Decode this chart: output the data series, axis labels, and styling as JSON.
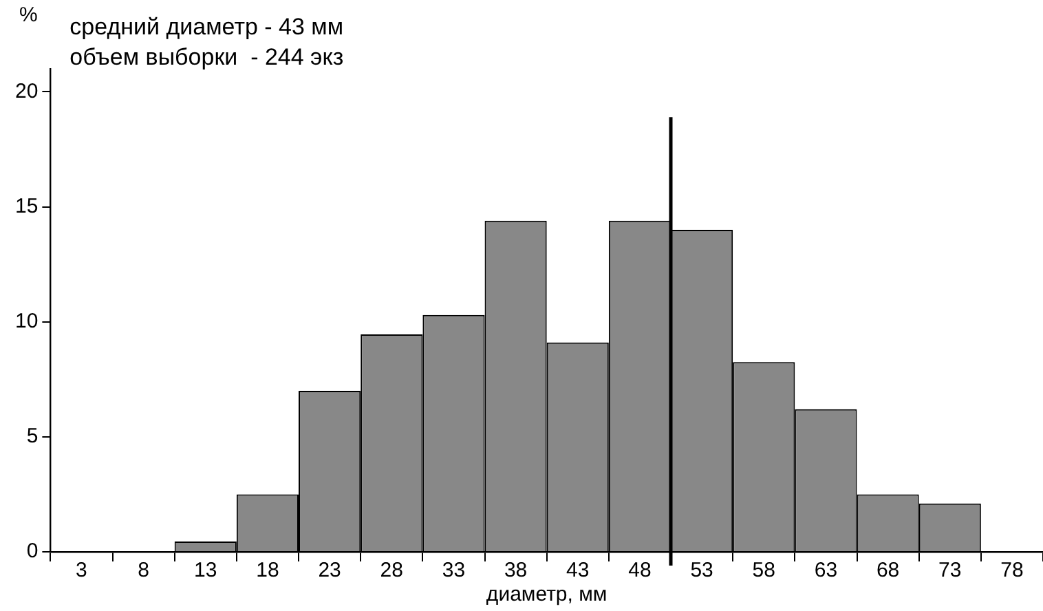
{
  "chart_data": {
    "type": "histogram",
    "xlabel": "диаметр, мм",
    "ylabel": "%",
    "annotations": [
      "средний диаметр - 43 мм",
      "объем выборки  - 244 экз"
    ],
    "bins": [
      0.5,
      5.5,
      10.5,
      15.5,
      20.5,
      25.5,
      30.5,
      35.5,
      40.5,
      45.5,
      50.5,
      55.5,
      60.5,
      65.5,
      70.5,
      75.5,
      80.5
    ],
    "values": [
      0,
      0,
      0.45,
      2.5,
      7.0,
      9.45,
      10.3,
      14.4,
      9.1,
      14.4,
      14.0,
      8.25,
      6.2,
      2.5,
      2.1,
      0
    ],
    "color": "#888888",
    "xlim": [
      0.5,
      80.5
    ],
    "xticks": [
      {
        "value": 0.5,
        "label": null
      },
      3,
      {
        "value": 5.5,
        "label": null
      },
      8,
      {
        "value": 10.5,
        "label": null
      },
      13,
      {
        "value": 15.5,
        "label": null
      },
      18,
      {
        "value": 20.5,
        "label": null
      },
      23,
      {
        "value": 25.5,
        "label": null
      },
      28,
      {
        "value": 30.5,
        "label": null
      },
      33,
      {
        "value": 35.5,
        "label": null
      },
      38,
      {
        "value": 40.5,
        "label": null
      },
      43,
      {
        "value": 45.5,
        "label": null
      },
      48,
      {
        "value": 50.5,
        "label": null
      },
      53,
      {
        "value": 55.5,
        "label": null
      },
      58,
      {
        "value": 60.5,
        "label": null
      },
      63,
      {
        "value": 65.5,
        "label": null
      },
      68,
      {
        "value": 70.5,
        "label": null
      },
      73,
      {
        "value": 75.5,
        "label": null
      },
      78,
      {
        "value": 80.5,
        "label": null
      }
    ],
    "ylim": [
      0,
      21
    ],
    "yticks": [
      0,
      5,
      10,
      15,
      20
    ],
    "ref_lines": [
      {
        "axis": "x",
        "value": 50.5,
        "color": "#000000"
      }
    ],
    "grid": false,
    "legend": false
  }
}
